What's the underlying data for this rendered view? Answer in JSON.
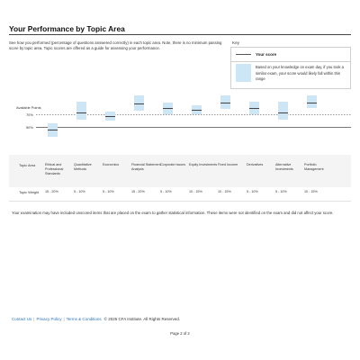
{
  "header": {
    "title": "Your Performance by Topic Area"
  },
  "description": "See how you performed (percentage of questions answered correctly) in each topic area. Note, there is no minimum passing score by topic area. Topic scores are offered as a guide for assessing your performance.",
  "key": {
    "label": "Key",
    "your_score": "Your score",
    "range_text": "Based on your knowledge on exam day, if you took a similar exam, your score would likely fall within this range"
  },
  "axis": {
    "title": "Available Points",
    "ticks": [
      {
        "label": "70%",
        "value": 70
      },
      {
        "label": "50%",
        "value": 50
      }
    ]
  },
  "table": {
    "topic_header": "Topic Area",
    "weight_header": "Topic Weight"
  },
  "topics": [
    {
      "name": "Ethical and Professional Standards",
      "weight": "15 - 20%",
      "score": 46,
      "range_low": 34,
      "range_high": 56
    },
    {
      "name": "Quantitative Methods",
      "weight": "5 - 10%",
      "score": 73,
      "range_low": 61,
      "range_high": 90
    },
    {
      "name": "Economics",
      "weight": "5 - 10%",
      "score": 67,
      "range_low": 60,
      "range_high": 74
    },
    {
      "name": "Financial Statement Analysis",
      "weight": "15 - 20%",
      "score": 87,
      "range_low": 76,
      "range_high": 100
    },
    {
      "name": "Corporate Issues",
      "weight": "5 - 10%",
      "score": 80,
      "range_low": 70,
      "range_high": 88
    },
    {
      "name": "Equity Investments",
      "weight": "10 - 15%",
      "score": 77,
      "range_low": 70,
      "range_high": 85
    },
    {
      "name": "Fixed Income",
      "weight": "10 - 15%",
      "score": 88,
      "range_low": 79,
      "range_high": 100
    },
    {
      "name": "Derivatives",
      "weight": "5 - 10%",
      "score": 80,
      "range_low": 70,
      "range_high": 90
    },
    {
      "name": "Alternative Investments",
      "weight": "5 - 10%",
      "score": 73,
      "range_low": 62,
      "range_high": 90
    },
    {
      "name": "Portfolio Management",
      "weight": "10 - 15%",
      "score": 88,
      "range_low": 80,
      "range_high": 100
    }
  ],
  "note": "Your examination may have included unscored items that are placed on the exam to gather statistical information. These items were not identified on the exam and did not affect your score.",
  "footer": {
    "links": [
      "Contact Us",
      "Privacy Policy",
      "Terms & Conditions"
    ],
    "copyright": "© 2025 CFA Institute. All Rights Reserved.",
    "page": "Page 2 of 2"
  }
}
